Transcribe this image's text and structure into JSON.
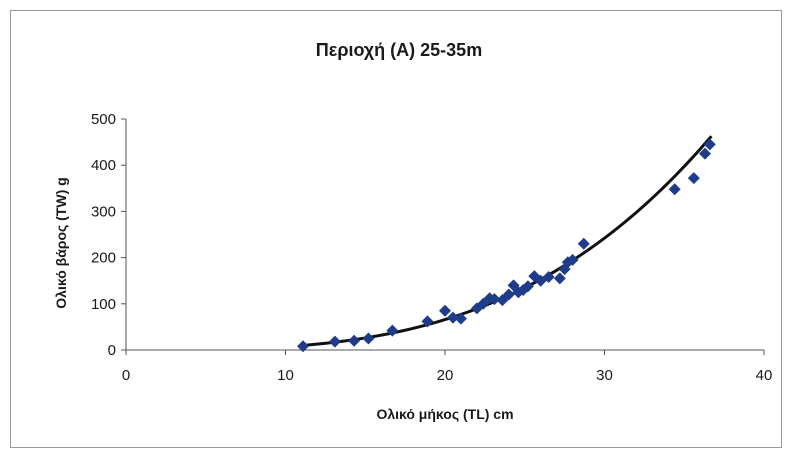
{
  "chart_data": {
    "type": "scatter",
    "title": "Περιοχή (Α) 25-35m",
    "xlabel": "Ολικό μήκος (TL) cm",
    "ylabel": "Ολικό βάρος (TW) g",
    "xlim": [
      0,
      40
    ],
    "ylim": [
      0,
      500
    ],
    "x_ticks": [
      0,
      10,
      20,
      30,
      40
    ],
    "y_ticks": [
      0,
      100,
      200,
      300,
      400,
      500
    ],
    "grid": false,
    "legend": "none",
    "marker_color": "#1f3c88",
    "curve_color": "#111111",
    "series": [
      {
        "marker": "diamond",
        "x": [
          11.1,
          13.1,
          14.3,
          15.2,
          16.7,
          18.9,
          20.0,
          20.5,
          21.0,
          22.0,
          22.4,
          22.8,
          23.1,
          23.6,
          24.0,
          24.3,
          24.6,
          24.9,
          25.2,
          25.6,
          26.0,
          26.5,
          27.2,
          27.5,
          27.7,
          28.0,
          28.7,
          34.4,
          35.6,
          36.3,
          36.6
        ],
        "y": [
          8,
          18,
          20,
          25,
          42,
          62,
          85,
          70,
          68,
          90,
          100,
          112,
          110,
          108,
          120,
          140,
          125,
          130,
          138,
          160,
          150,
          158,
          155,
          175,
          190,
          195,
          230,
          348,
          372,
          425,
          445
        ]
      }
    ],
    "fit": {
      "type": "power",
      "x_range": [
        11,
        36.7
      ]
    }
  }
}
